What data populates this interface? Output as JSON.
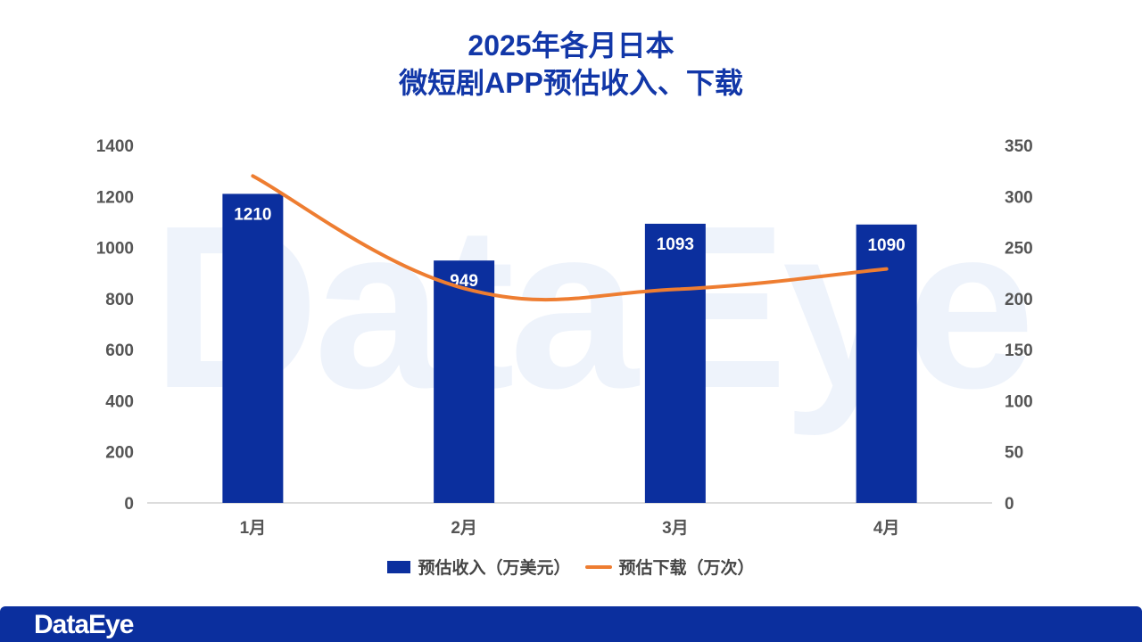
{
  "header": {
    "title_line1": "2025年各月日本",
    "title_line2": "微短剧APP预估收入、下载"
  },
  "watermark": "DataEye",
  "footer": {
    "logo": "DataEye"
  },
  "colors": {
    "bar": "#0b2f9e",
    "line": "#ee7d31",
    "title": "#1237a8"
  },
  "chart_data": {
    "type": "bar",
    "title": "2025年各月日本微短剧APP预估收入、下载",
    "categories": [
      "1月",
      "2月",
      "3月",
      "4月"
    ],
    "series": [
      {
        "name": "预估收入（万美元）",
        "type": "bar",
        "axis": "left",
        "values": [
          1210,
          949,
          1093,
          1090
        ]
      },
      {
        "name": "预估下载（万次）",
        "type": "line",
        "axis": "right",
        "values": [
          320,
          210,
          209,
          229
        ]
      }
    ],
    "y_left": {
      "min": 0,
      "max": 1400,
      "ticks": [
        0,
        200,
        400,
        600,
        800,
        1000,
        1200,
        1400
      ]
    },
    "y_right": {
      "min": 0,
      "max": 350,
      "ticks": [
        0,
        50,
        100,
        150,
        200,
        250,
        300,
        350
      ]
    },
    "legend": {
      "position": "bottom",
      "items": [
        "预估收入（万美元）",
        "预估下载（万次）"
      ]
    },
    "grid": false
  }
}
